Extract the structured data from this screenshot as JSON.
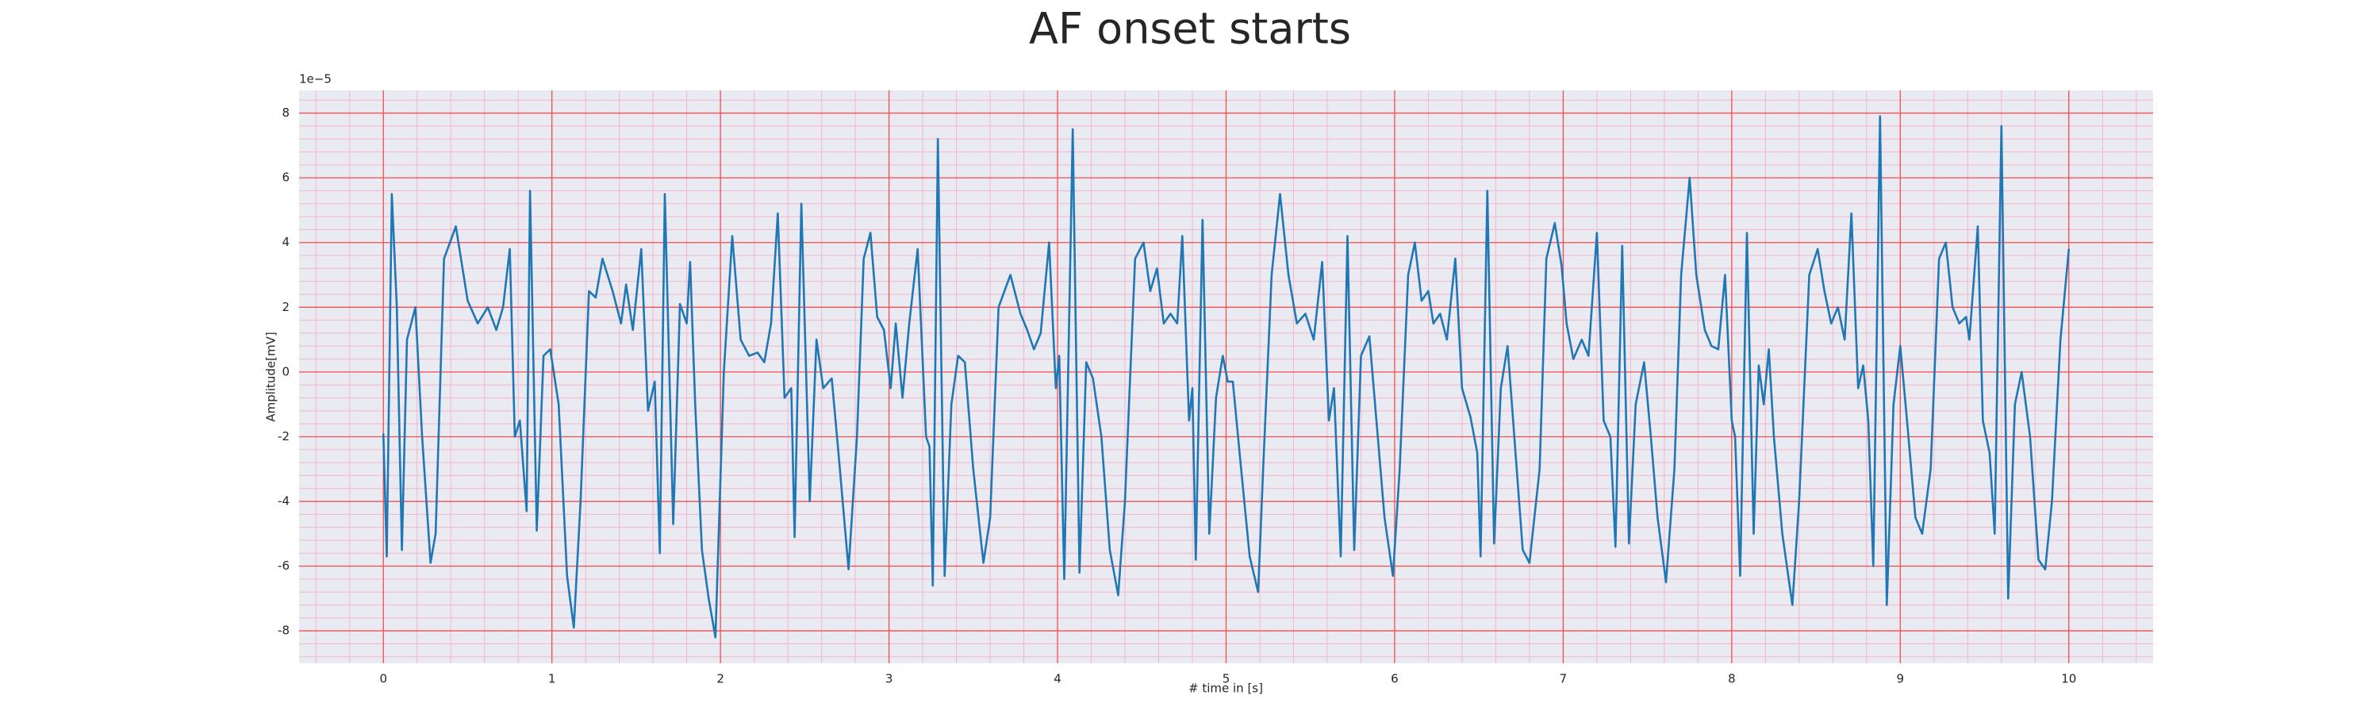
{
  "chart_data": {
    "type": "line",
    "title": "AF onset starts",
    "xlabel": "# time in [s]",
    "ylabel": "Amplitude[mV]",
    "y_offset_label": "1e−5",
    "color": "#1f77b4",
    "grid": true,
    "minor_grid": true,
    "xlim": [
      -0.5,
      10.5
    ],
    "ylim": [
      -9,
      8.7
    ],
    "xticks": [
      0,
      1,
      2,
      3,
      4,
      5,
      6,
      7,
      8,
      9,
      10
    ],
    "yticks": [
      -8,
      -6,
      -4,
      -2,
      0,
      2,
      4,
      6,
      8
    ],
    "x": [
      0.0,
      0.02,
      0.05,
      0.08,
      0.11,
      0.14,
      0.19,
      0.23,
      0.28,
      0.31,
      0.36,
      0.43,
      0.5,
      0.56,
      0.62,
      0.67,
      0.71,
      0.75,
      0.78,
      0.81,
      0.85,
      0.87,
      0.91,
      0.95,
      0.99,
      1.04,
      1.09,
      1.13,
      1.17,
      1.22,
      1.26,
      1.3,
      1.36,
      1.41,
      1.44,
      1.48,
      1.53,
      1.57,
      1.61,
      1.64,
      1.67,
      1.72,
      1.76,
      1.8,
      1.82,
      1.85,
      1.89,
      1.93,
      1.97,
      2.02,
      2.07,
      2.12,
      2.17,
      2.22,
      2.26,
      2.3,
      2.34,
      2.38,
      2.42,
      2.44,
      2.48,
      2.53,
      2.57,
      2.61,
      2.66,
      2.7,
      2.76,
      2.81,
      2.85,
      2.89,
      2.93,
      2.97,
      3.01,
      3.04,
      3.08,
      3.12,
      3.17,
      3.22,
      3.24,
      3.26,
      3.29,
      3.33,
      3.37,
      3.41,
      3.45,
      3.5,
      3.56,
      3.6,
      3.65,
      3.72,
      3.78,
      3.82,
      3.86,
      3.9,
      3.95,
      3.99,
      4.01,
      4.04,
      4.09,
      4.13,
      4.17,
      4.21,
      4.26,
      4.31,
      4.36,
      4.4,
      4.46,
      4.51,
      4.55,
      4.59,
      4.63,
      4.67,
      4.71,
      4.74,
      4.78,
      4.8,
      4.82,
      4.86,
      4.9,
      4.94,
      4.98,
      5.01,
      5.04,
      5.08,
      5.14,
      5.19,
      5.22,
      5.27,
      5.32,
      5.37,
      5.42,
      5.47,
      5.52,
      5.57,
      5.61,
      5.64,
      5.68,
      5.72,
      5.76,
      5.8,
      5.85,
      5.9,
      5.94,
      5.99,
      6.03,
      6.08,
      6.12,
      6.16,
      6.2,
      6.23,
      6.27,
      6.31,
      6.36,
      6.4,
      6.45,
      6.49,
      6.51,
      6.55,
      6.59,
      6.63,
      6.67,
      6.71,
      6.76,
      6.8,
      6.86,
      6.9,
      6.95,
      6.99,
      7.02,
      7.06,
      7.11,
      7.15,
      7.2,
      7.24,
      7.28,
      7.31,
      7.35,
      7.39,
      7.43,
      7.48,
      7.52,
      7.56,
      7.61,
      7.66,
      7.7,
      7.75,
      7.79,
      7.84,
      7.88,
      7.92,
      7.96,
      8.0,
      8.02,
      8.05,
      8.09,
      8.13,
      8.16,
      8.19,
      8.22,
      8.25,
      8.3,
      8.36,
      8.4,
      8.46,
      8.51,
      8.55,
      8.59,
      8.63,
      8.67,
      8.71,
      8.75,
      8.78,
      8.81,
      8.84,
      8.88,
      8.92,
      8.96,
      9.0,
      9.04,
      9.09,
      9.13,
      9.18,
      9.23,
      9.27,
      9.31,
      9.35,
      9.39,
      9.41,
      9.46,
      9.49,
      9.53,
      9.56,
      9.6,
      9.64,
      9.68,
      9.72,
      9.77,
      9.82,
      9.86,
      9.9,
      9.95,
      10.0
    ],
    "values": [
      -1.9,
      -5.7,
      5.5,
      2,
      -5.5,
      1,
      2,
      -2,
      -5.9,
      -5,
      3.5,
      4.5,
      2.2,
      1.5,
      2,
      1.3,
      2,
      3.8,
      -2,
      -1.5,
      -4.3,
      5.6,
      -4.9,
      0.5,
      0.7,
      -1,
      -6.3,
      -7.9,
      -4,
      2.5,
      2.3,
      3.5,
      2.5,
      1.5,
      2.7,
      1.3,
      3.8,
      -1.2,
      -0.3,
      -5.6,
      5.5,
      -4.7,
      2.1,
      1.5,
      3.4,
      -1,
      -5.5,
      -7,
      -8.2,
      0,
      4.2,
      1,
      0.5,
      0.6,
      0.3,
      1.5,
      4.9,
      -0.8,
      -0.5,
      -5.1,
      5.2,
      -4,
      1,
      -0.5,
      -0.2,
      -2.5,
      -6.1,
      -2,
      3.5,
      4.3,
      1.7,
      1.3,
      -0.5,
      1.5,
      -0.8,
      1.5,
      3.8,
      -2,
      -2.3,
      -6.6,
      7.2,
      -6.3,
      -1,
      0.5,
      0.3,
      -3,
      -5.9,
      -4.5,
      2,
      3,
      1.8,
      1.3,
      0.7,
      1.2,
      4,
      -0.5,
      0.5,
      -6.4,
      7.5,
      -6.2,
      0.3,
      -0.2,
      -2,
      -5.5,
      -6.9,
      -4,
      3.5,
      4,
      2.5,
      3.2,
      1.5,
      1.8,
      1.5,
      4.2,
      -1.5,
      -0.5,
      -5.8,
      4.7,
      -5,
      -0.8,
      0.5,
      -0.3,
      -0.3,
      -2.5,
      -5.7,
      -6.8,
      -3,
      3,
      5.5,
      3,
      1.5,
      1.8,
      1,
      3.4,
      -1.5,
      -0.5,
      -5.7,
      4.2,
      -5.5,
      0.5,
      1.1,
      -2,
      -4.5,
      -6.3,
      -3,
      3,
      4,
      2.2,
      2.5,
      1.5,
      1.8,
      1,
      3.5,
      -0.5,
      -1.4,
      -2.5,
      -5.7,
      5.6,
      -5.3,
      -0.5,
      0.8,
      -2,
      -5.5,
      -5.9,
      -3,
      3.5,
      4.6,
      3.3,
      1.5,
      0.4,
      1,
      0.5,
      4.3,
      -1.5,
      -2,
      -5.4,
      3.9,
      -5.3,
      -1,
      0.3,
      -2,
      -4.5,
      -6.5,
      -3,
      3,
      6,
      3,
      1.3,
      0.8,
      0.7,
      3,
      -1.5,
      -2,
      -6.3,
      4.3,
      -5,
      0.2,
      -1,
      0.7,
      -2,
      -5,
      -7.2,
      -4,
      3,
      3.8,
      2.5,
      1.5,
      2,
      1,
      4.9,
      -0.5,
      0.2,
      -1.5,
      -6,
      7.9,
      -7.2,
      -1,
      0.8,
      -1.5,
      -4.5,
      -5,
      -3,
      3.5,
      4,
      2,
      1.5,
      1.7,
      1,
      4.5,
      -1.5,
      -2.5,
      -5,
      7.6,
      -7,
      -1,
      0,
      -2,
      -5.8,
      -6.1,
      -4,
      1,
      3.8
    ]
  }
}
